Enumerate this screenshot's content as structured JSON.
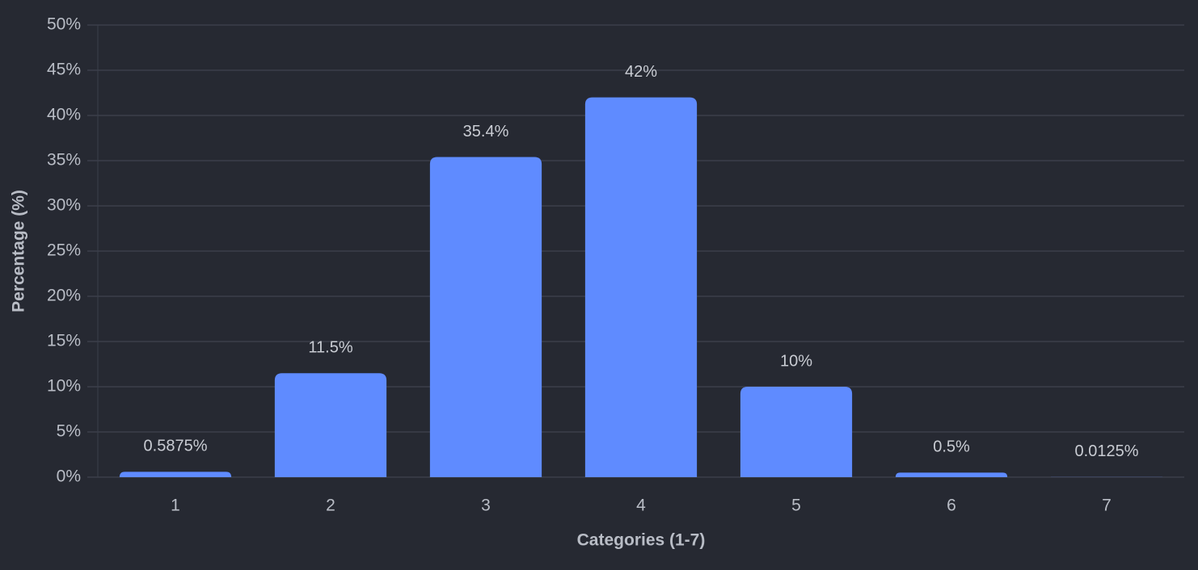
{
  "chart_data": {
    "type": "bar",
    "x_label": "Categories (1-7)",
    "y_label": "Percentage (%)",
    "categories": [
      "1",
      "2",
      "3",
      "4",
      "5",
      "6",
      "7"
    ],
    "values": [
      0.5875,
      11.5,
      35.4,
      42,
      10,
      0.5,
      0.0125
    ],
    "value_labels": [
      "0.5875%",
      "11.5%",
      "35.4%",
      "42%",
      "10%",
      "0.5%",
      "0.0125%"
    ],
    "color": "#5f8bff",
    "ylim": [
      0,
      50
    ],
    "yticks": [
      {
        "value": 0,
        "label": "0%"
      },
      {
        "value": 5,
        "label": "5%"
      },
      {
        "value": 10,
        "label": "10%"
      },
      {
        "value": 15,
        "label": "15%"
      },
      {
        "value": 20,
        "label": "20%"
      },
      {
        "value": 25,
        "label": "25%"
      },
      {
        "value": 30,
        "label": "30%"
      },
      {
        "value": 35,
        "label": "35%"
      },
      {
        "value": 40,
        "label": "40%"
      },
      {
        "value": 45,
        "label": "45%"
      },
      {
        "value": 50,
        "label": "50%"
      }
    ],
    "grid": true
  }
}
